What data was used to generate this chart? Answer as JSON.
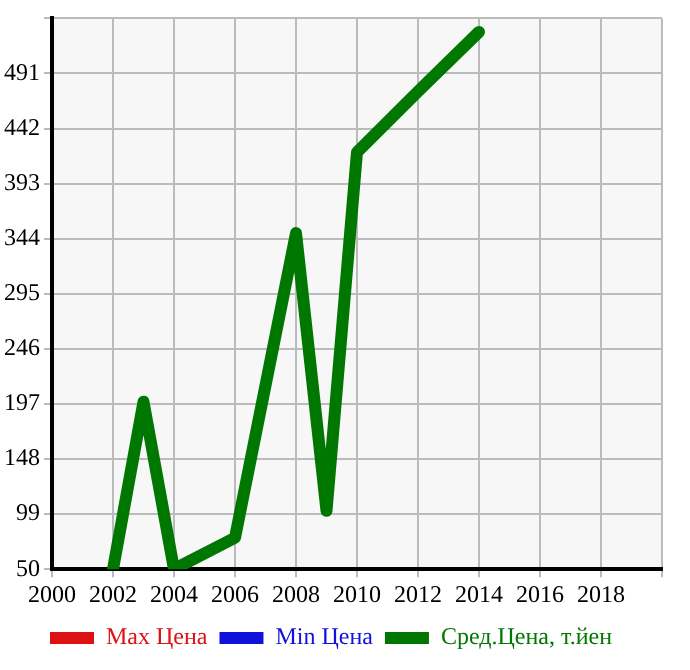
{
  "chart_data": {
    "type": "line",
    "xlim": [
      2000,
      2020
    ],
    "xticks": [
      2000,
      2002,
      2004,
      2006,
      2008,
      2010,
      2012,
      2014,
      2016,
      2018,
      {
        "value": 2020,
        "label": null
      }
    ],
    "ylim": [
      50,
      540
    ],
    "yticks": [
      50,
      99,
      148,
      197,
      246,
      295,
      344,
      393,
      442,
      491,
      {
        "value": 540,
        "label": null
      }
    ],
    "grid": true,
    "legend": "bottom",
    "marker": "none",
    "series": [
      {
        "name": "Max Цена",
        "color": "#dd1111"
      },
      {
        "name": "Min Цена",
        "color": "#1111dd"
      },
      {
        "name": "Сред.Цена, т.йен",
        "color": "#007700",
        "x": [
          2002,
          2003,
          2004,
          2006,
          2008,
          2009,
          2010,
          2012,
          2014
        ],
        "values": [
          50,
          199,
          50,
          78,
          349,
          102,
          421,
          475,
          528
        ]
      }
    ]
  }
}
